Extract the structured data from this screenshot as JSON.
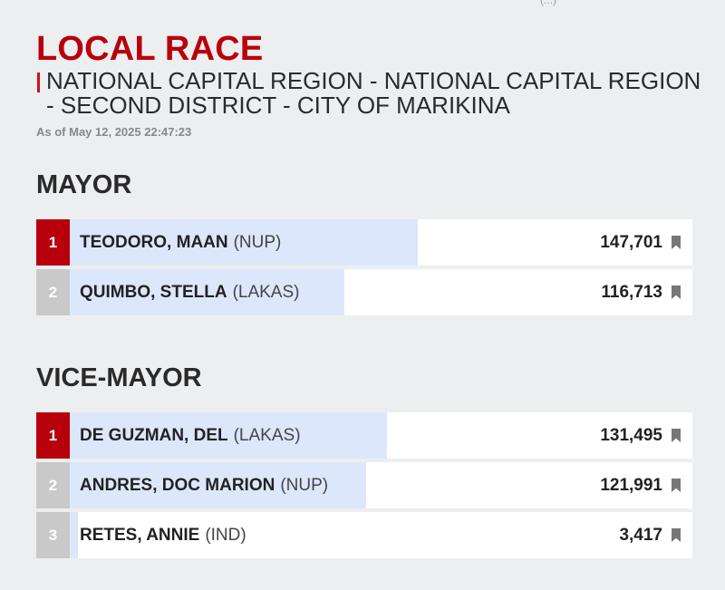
{
  "page": {
    "top_fragment": "(...)",
    "race_title": "LOCAL RACE",
    "region_title": "NATIONAL CAPITAL REGION - NATIONAL CAPITAL REGION - SECOND DISTRICT - CITY OF MARIKINA",
    "as_of": "As of May 12, 2025 22:47:23"
  },
  "colors": {
    "accent": "#b8000c",
    "progress_fill": "#dde7fb",
    "rank_other": "#c9c9c9",
    "background": "#edeef0"
  },
  "sections": [
    {
      "title": "MAYOR",
      "candidates": [
        {
          "rank": "1",
          "name": "TEODORO, MAAN",
          "party": "(NUP)",
          "votes": "147,701",
          "share": 0.559
        },
        {
          "rank": "2",
          "name": "QUIMBO, STELLA",
          "party": "(LAKAS)",
          "votes": "116,713",
          "share": 0.441
        }
      ]
    },
    {
      "title": "VICE-MAYOR",
      "candidates": [
        {
          "rank": "1",
          "name": "DE GUZMAN, DEL",
          "party": "(LAKAS)",
          "votes": "131,495",
          "share": 0.51
        },
        {
          "rank": "2",
          "name": "ANDRES, DOC MARION",
          "party": "(NUP)",
          "votes": "121,991",
          "share": 0.476
        },
        {
          "rank": "3",
          "name": "RETES, ANNIE",
          "party": "(IND)",
          "votes": "3,417",
          "share": 0.013
        }
      ]
    }
  ]
}
